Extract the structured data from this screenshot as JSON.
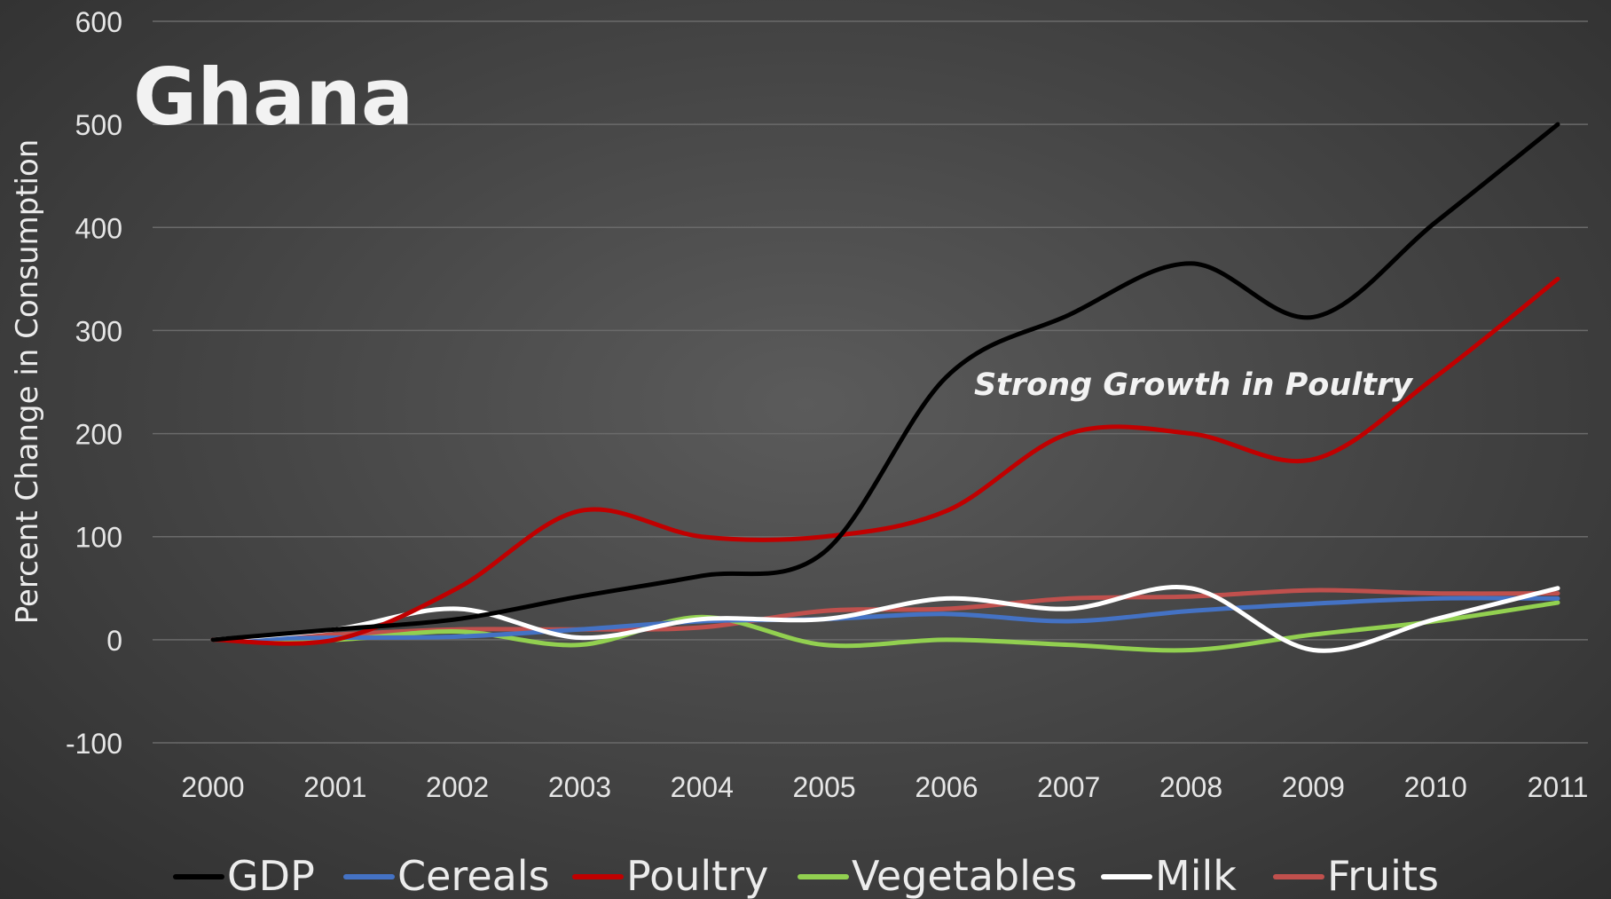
{
  "chart_data": {
    "type": "line",
    "title": "Ghana",
    "ylabel": "Percent Change in Consumption",
    "xlabel": "",
    "annotation": "Strong Growth in Poultry",
    "ylim": [
      -100,
      600
    ],
    "yticks": [
      -100,
      0,
      100,
      200,
      300,
      400,
      500,
      600
    ],
    "x": [
      "2000",
      "2001",
      "2002",
      "2003",
      "2004",
      "2005",
      "2006",
      "2007",
      "2008",
      "2009",
      "2010",
      "2011"
    ],
    "grid": "horizontal",
    "legend_position": "bottom",
    "series": [
      {
        "name": "GDP",
        "color": "#000000",
        "values": [
          0,
          10,
          20,
          42,
          62,
          85,
          255,
          315,
          365,
          313,
          405,
          500
        ]
      },
      {
        "name": "Cereals",
        "color": "#4472c4",
        "values": [
          0,
          2,
          3,
          10,
          18,
          20,
          25,
          18,
          28,
          35,
          40,
          40
        ]
      },
      {
        "name": "Poultry",
        "color": "#c00000",
        "values": [
          0,
          0,
          50,
          125,
          100,
          100,
          125,
          200,
          200,
          175,
          255,
          350
        ]
      },
      {
        "name": "Vegetables",
        "color": "#92d050",
        "values": [
          0,
          0,
          8,
          -5,
          22,
          -5,
          0,
          -5,
          -10,
          5,
          18,
          36
        ]
      },
      {
        "name": "Milk",
        "color": "#ffffff",
        "values": [
          0,
          10,
          30,
          2,
          20,
          20,
          40,
          30,
          50,
          -10,
          20,
          50
        ]
      },
      {
        "name": "Fruits",
        "color": "#c0504d",
        "values": [
          0,
          5,
          10,
          10,
          12,
          28,
          30,
          40,
          42,
          48,
          45,
          45
        ]
      }
    ]
  }
}
